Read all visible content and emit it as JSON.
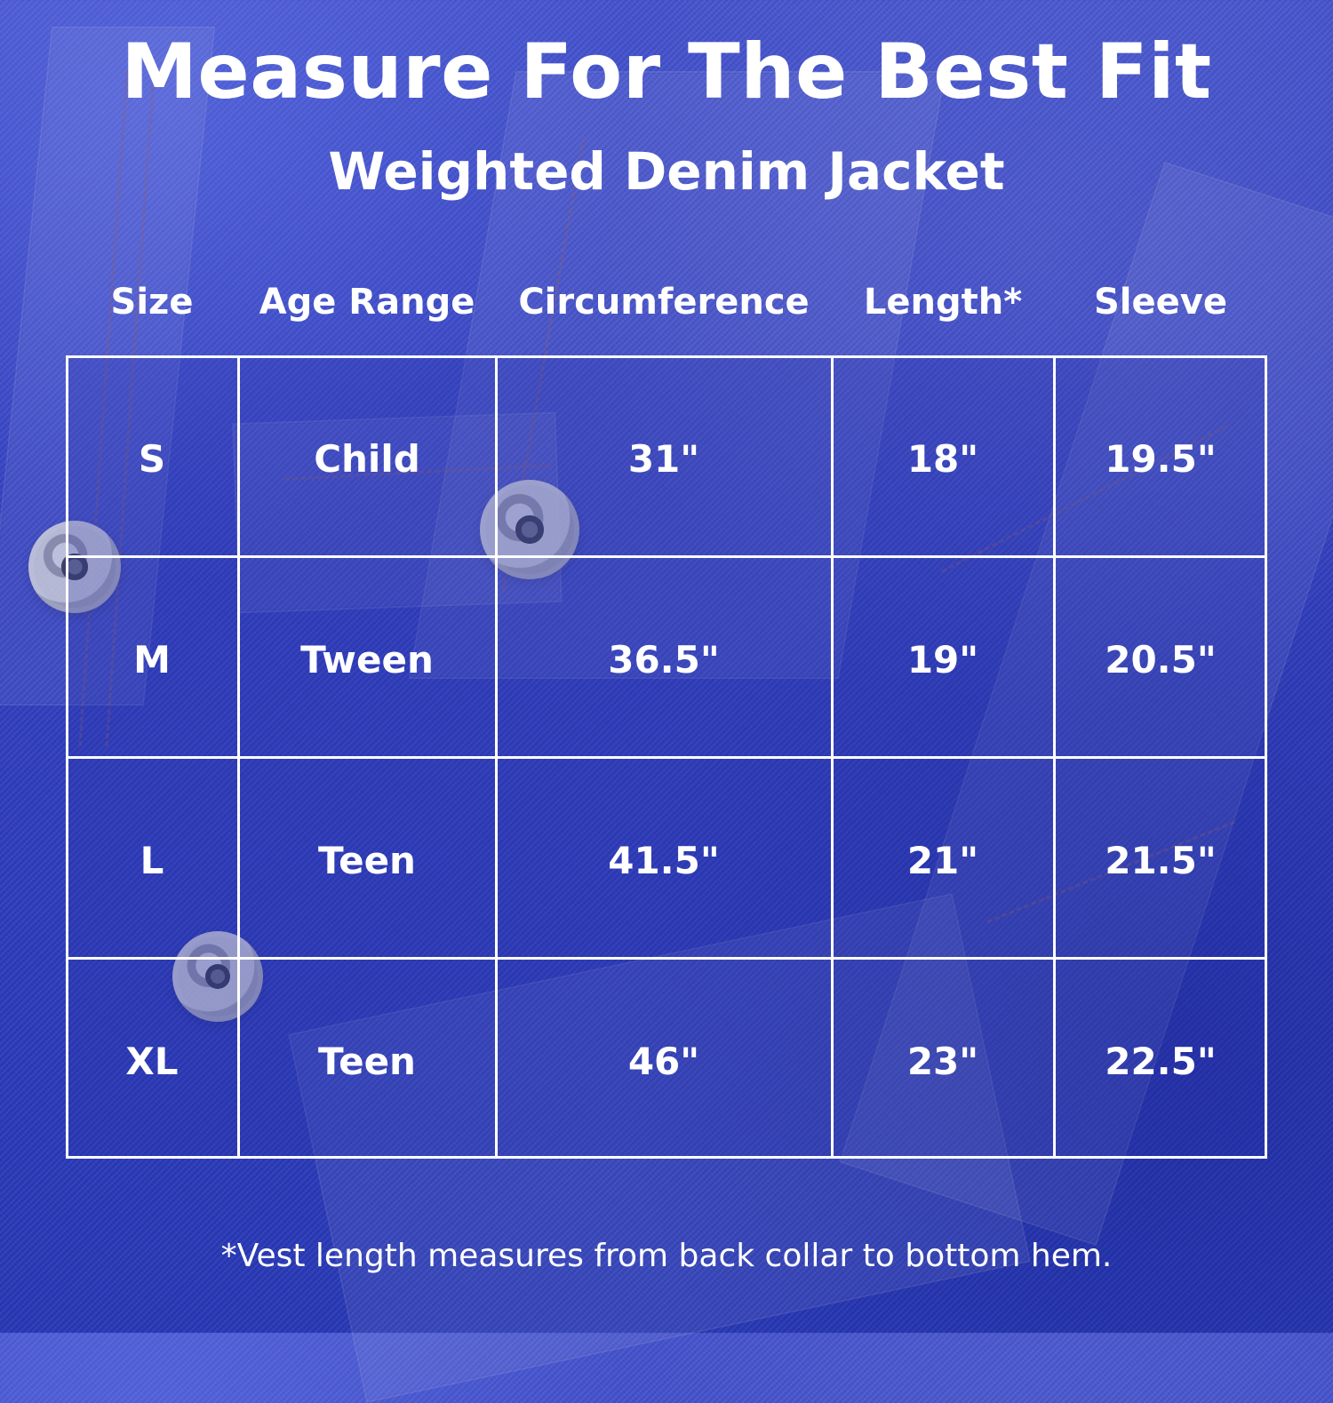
{
  "page": {
    "title": "Measure For The Best Fit",
    "subtitle": "Weighted Denim Jacket",
    "footnote": "*Vest length measures from back collar to bottom hem."
  },
  "table": {
    "headers": [
      "Size",
      "Age Range",
      "Circumference",
      "Length*",
      "Sleeve"
    ],
    "rows": [
      [
        "S",
        "Child",
        "31\"",
        "18\"",
        "19.5\""
      ],
      [
        "M",
        "Tween",
        "36.5\"",
        "19\"",
        "20.5\""
      ],
      [
        "L",
        "Teen",
        "41.5\"",
        "21\"",
        "21.5\""
      ],
      [
        "XL",
        "Teen",
        "46\"",
        "23\"",
        "22.5\""
      ]
    ]
  },
  "colors": {
    "background": "#3341c4",
    "text": "#ffffff",
    "grid": "#ffffff"
  }
}
